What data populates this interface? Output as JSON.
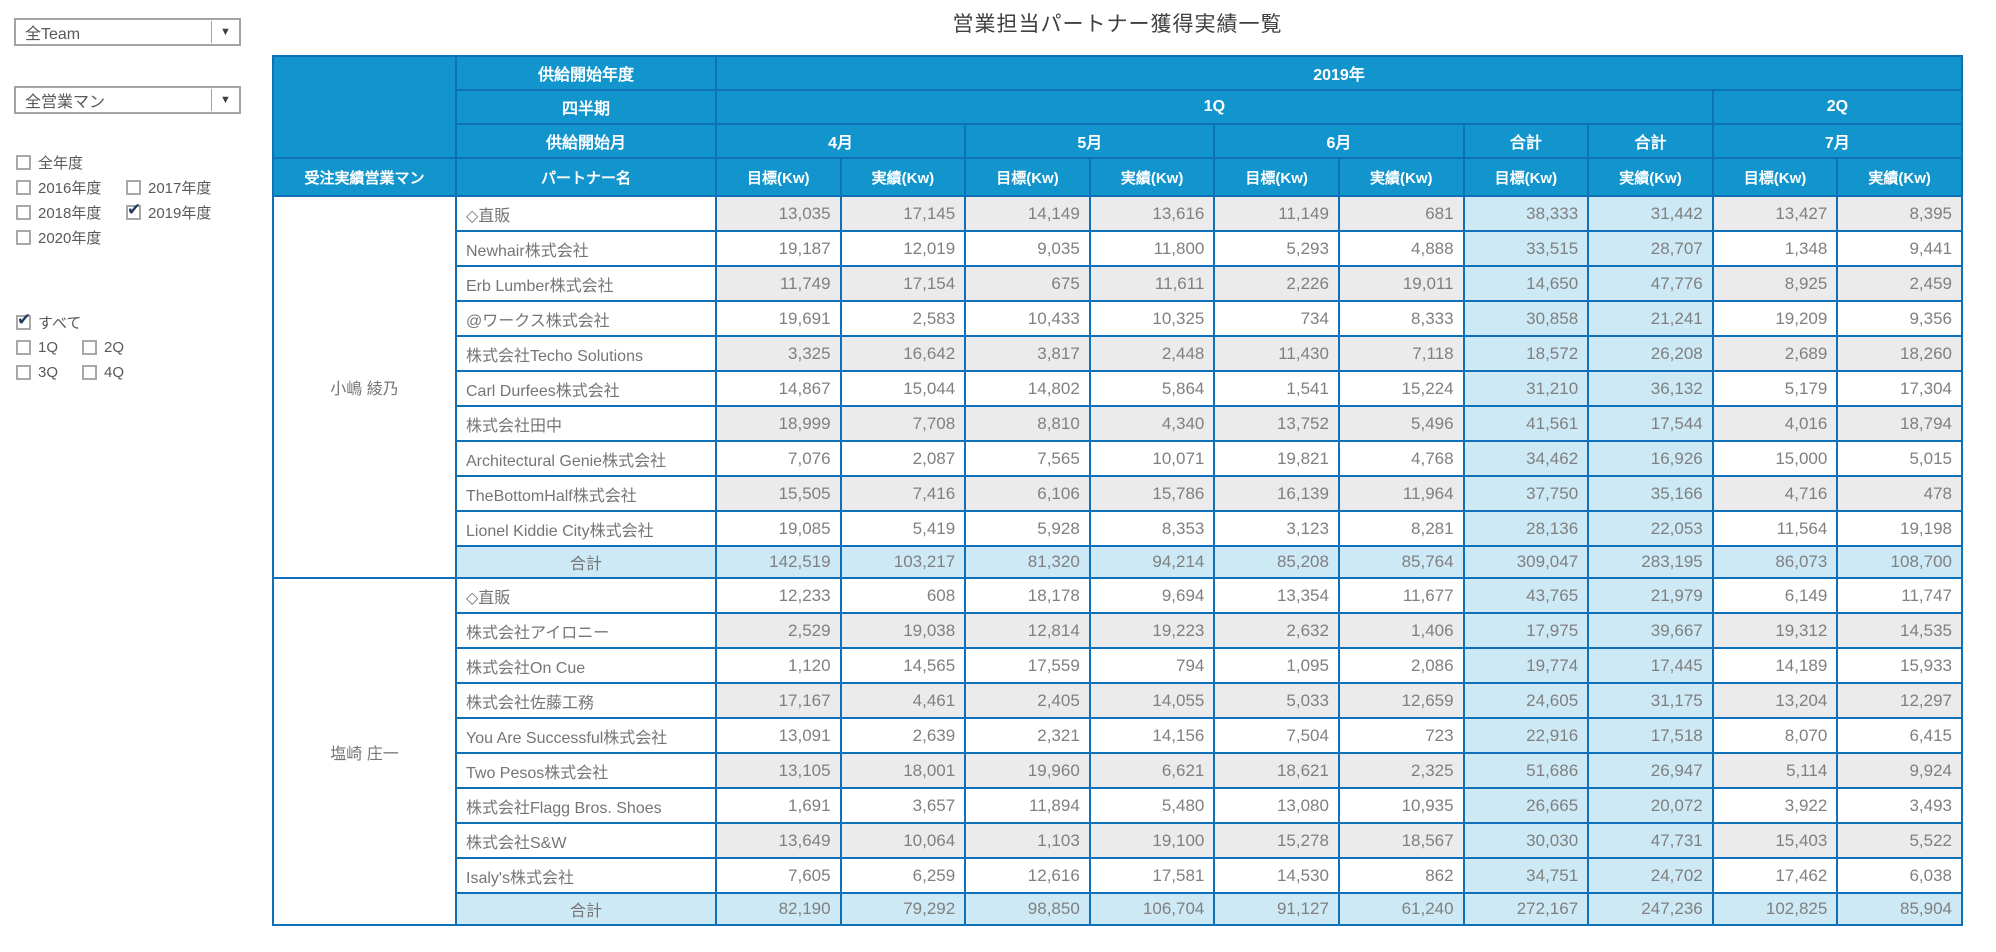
{
  "title": "営業担当パートナー獲得実績一覧",
  "sidebar": {
    "team_dropdown": {
      "value": "全Team"
    },
    "salesman_dropdown": {
      "value": "全営業マン"
    },
    "year_rows": [
      [
        {
          "label": "全年度",
          "checked": false
        }
      ],
      [
        {
          "label": "2016年度",
          "checked": false
        },
        {
          "label": "2017年度",
          "checked": false
        }
      ],
      [
        {
          "label": "2018年度",
          "checked": false
        },
        {
          "label": "2019年度",
          "checked": true
        }
      ],
      [
        {
          "label": "2020年度",
          "checked": false
        }
      ]
    ],
    "quarter_rows": [
      [
        {
          "label": "すべて",
          "checked": true
        }
      ],
      [
        {
          "label": "1Q",
          "checked": false
        },
        {
          "label": "2Q",
          "checked": false
        }
      ],
      [
        {
          "label": "3Q",
          "checked": false
        },
        {
          "label": "4Q",
          "checked": false
        }
      ]
    ]
  },
  "table": {
    "header": {
      "supply_start_year_label": "供給開始年度",
      "quarter_label": "四半期",
      "supply_start_month_label": "供給開始月",
      "salesman_label": "受注実績営業マン",
      "partner_label": "パートナー名",
      "year": "2019年",
      "q1": "1Q",
      "q2": "2Q",
      "month_cells": [
        "4月",
        "5月",
        "6月",
        "合計",
        "合計",
        "7月"
      ],
      "target_label": "目標(Kw)",
      "actual_label": "実績(Kw)"
    },
    "groups": [
      {
        "salesman": "小嶋 綾乃",
        "rows": [
          {
            "partner": "◇直販",
            "values": [
              "13,035",
              "17,145",
              "14,149",
              "13,616",
              "11,149",
              "681",
              "38,333",
              "31,442",
              "13,427",
              "8,395"
            ]
          },
          {
            "partner": "Newhair株式会社",
            "values": [
              "19,187",
              "12,019",
              "9,035",
              "11,800",
              "5,293",
              "4,888",
              "33,515",
              "28,707",
              "1,348",
              "9,441"
            ]
          },
          {
            "partner": "Erb Lumber株式会社",
            "values": [
              "11,749",
              "17,154",
              "675",
              "11,611",
              "2,226",
              "19,011",
              "14,650",
              "47,776",
              "8,925",
              "2,459"
            ]
          },
          {
            "partner": "@ワークス株式会社",
            "values": [
              "19,691",
              "2,583",
              "10,433",
              "10,325",
              "734",
              "8,333",
              "30,858",
              "21,241",
              "19,209",
              "9,356"
            ]
          },
          {
            "partner": "株式会社Techo Solutions",
            "values": [
              "3,325",
              "16,642",
              "3,817",
              "2,448",
              "11,430",
              "7,118",
              "18,572",
              "26,208",
              "2,689",
              "18,260"
            ]
          },
          {
            "partner": "Carl Durfees株式会社",
            "values": [
              "14,867",
              "15,044",
              "14,802",
              "5,864",
              "1,541",
              "15,224",
              "31,210",
              "36,132",
              "5,179",
              "17,304"
            ]
          },
          {
            "partner": "株式会社田中",
            "values": [
              "18,999",
              "7,708",
              "8,810",
              "4,340",
              "13,752",
              "5,496",
              "41,561",
              "17,544",
              "4,016",
              "18,794"
            ]
          },
          {
            "partner": "Architectural Genie株式会社",
            "values": [
              "7,076",
              "2,087",
              "7,565",
              "10,071",
              "19,821",
              "4,768",
              "34,462",
              "16,926",
              "15,000",
              "5,015"
            ]
          },
          {
            "partner": "TheBottomHalf株式会社",
            "values": [
              "15,505",
              "7,416",
              "6,106",
              "15,786",
              "16,139",
              "11,964",
              "37,750",
              "35,166",
              "4,716",
              "478"
            ]
          },
          {
            "partner": "Lionel Kiddie City株式会社",
            "values": [
              "19,085",
              "5,419",
              "5,928",
              "8,353",
              "3,123",
              "8,281",
              "28,136",
              "22,053",
              "11,564",
              "19,198"
            ]
          }
        ],
        "total": {
          "label": "合計",
          "values": [
            "142,519",
            "103,217",
            "81,320",
            "94,214",
            "85,208",
            "85,764",
            "309,047",
            "283,195",
            "86,073",
            "108,700"
          ]
        }
      },
      {
        "salesman": "塩崎 庄一",
        "rows": [
          {
            "partner": "◇直販",
            "values": [
              "12,233",
              "608",
              "18,178",
              "9,694",
              "13,354",
              "11,677",
              "43,765",
              "21,979",
              "6,149",
              "11,747"
            ]
          },
          {
            "partner": "株式会社アイロニー",
            "values": [
              "2,529",
              "19,038",
              "12,814",
              "19,223",
              "2,632",
              "1,406",
              "17,975",
              "39,667",
              "19,312",
              "14,535"
            ]
          },
          {
            "partner": "株式会社On Cue",
            "values": [
              "1,120",
              "14,565",
              "17,559",
              "794",
              "1,095",
              "2,086",
              "19,774",
              "17,445",
              "14,189",
              "15,933"
            ]
          },
          {
            "partner": "株式会社佐藤工務",
            "values": [
              "17,167",
              "4,461",
              "2,405",
              "14,055",
              "5,033",
              "12,659",
              "24,605",
              "31,175",
              "13,204",
              "12,297"
            ]
          },
          {
            "partner": "You Are Successful株式会社",
            "values": [
              "13,091",
              "2,639",
              "2,321",
              "14,156",
              "7,504",
              "723",
              "22,916",
              "17,518",
              "8,070",
              "6,415"
            ]
          },
          {
            "partner": "Two Pesos株式会社",
            "values": [
              "13,105",
              "18,001",
              "19,960",
              "6,621",
              "18,621",
              "2,325",
              "51,686",
              "26,947",
              "5,114",
              "9,924"
            ]
          },
          {
            "partner": "株式会社Flagg Bros. Shoes",
            "values": [
              "1,691",
              "3,657",
              "11,894",
              "5,480",
              "13,080",
              "10,935",
              "26,665",
              "20,072",
              "3,922",
              "3,493"
            ]
          },
          {
            "partner": "株式会社S&W",
            "values": [
              "13,649",
              "10,064",
              "1,103",
              "19,100",
              "15,278",
              "18,567",
              "30,030",
              "47,731",
              "15,403",
              "5,522"
            ]
          },
          {
            "partner": "Isaly's株式会社",
            "values": [
              "7,605",
              "6,259",
              "12,616",
              "17,581",
              "14,530",
              "862",
              "34,751",
              "24,702",
              "17,462",
              "6,038"
            ]
          }
        ],
        "total": {
          "label": "合計",
          "values": [
            "82,190",
            "79,292",
            "98,850",
            "106,704",
            "91,127",
            "61,240",
            "272,167",
            "247,236",
            "102,825",
            "85,904"
          ]
        }
      }
    ]
  }
}
